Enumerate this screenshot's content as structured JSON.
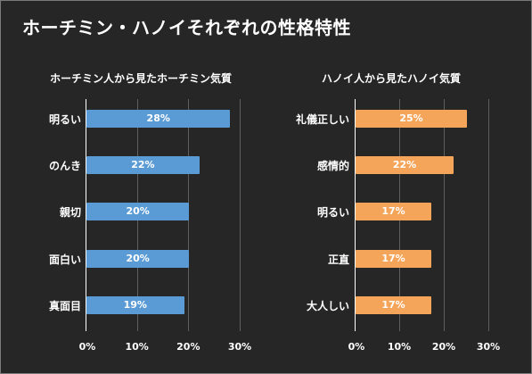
{
  "title": "ホーチミン・ハノイそれぞれの性格特性",
  "chart_data": [
    {
      "type": "bar",
      "orientation": "horizontal",
      "title": "ホーチミン人から見たホーチミン気質",
      "categories": [
        "明るい",
        "のんき",
        "親切",
        "面白い",
        "真面目"
      ],
      "values": [
        28,
        22,
        20,
        20,
        19
      ],
      "value_labels": [
        "28%",
        "22%",
        "20%",
        "20%",
        "19%"
      ],
      "xlim": [
        0,
        30
      ],
      "xticks": [
        "0%",
        "10%",
        "20%",
        "30%"
      ],
      "bar_color": "#5b9bd5",
      "grid": true
    },
    {
      "type": "bar",
      "orientation": "horizontal",
      "title": "ハノイ人から見たハノイ気質",
      "categories": [
        "礼儀正しい",
        "感情的",
        "明るい",
        "正直",
        "大人しい"
      ],
      "values": [
        25,
        22,
        17,
        17,
        17
      ],
      "value_labels": [
        "25%",
        "22%",
        "17%",
        "17%",
        "17%"
      ],
      "xlim": [
        0,
        30
      ],
      "xticks": [
        "0%",
        "10%",
        "20%",
        "30%"
      ],
      "bar_color": "#f5a55a",
      "grid": true
    }
  ]
}
